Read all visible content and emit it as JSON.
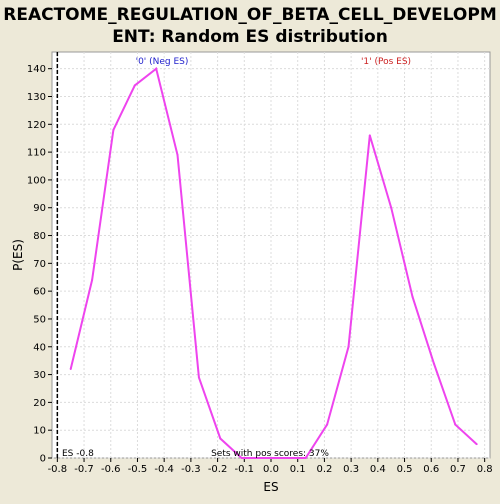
{
  "chart_data": {
    "type": "line",
    "title_line1": "REACTOME_REGULATION_OF_BETA_CELL_DEVELOPM",
    "title_line2": "ENT: Random ES distribution",
    "xlabel": "ES",
    "ylabel": "P(ES)",
    "xlim": [
      -0.82,
      0.82
    ],
    "ylim": [
      0,
      146
    ],
    "x_ticks": [
      -0.8,
      -0.7,
      -0.6,
      -0.5,
      -0.4,
      -0.3,
      -0.2,
      -0.1,
      0.0,
      0.1,
      0.2,
      0.3,
      0.4,
      0.5,
      0.6,
      0.7,
      0.8
    ],
    "x_tick_labels": [
      "-0.8",
      "-0.7",
      "-0.6",
      "-0.5",
      "-0.4",
      "-0.3",
      "-0.2",
      "-0.1",
      "0.0",
      "0.1",
      "0.2",
      "0.3",
      "0.4",
      "0.5",
      "0.6",
      "0.7",
      "0.8"
    ],
    "y_ticks": [
      0,
      10,
      20,
      30,
      40,
      50,
      60,
      70,
      80,
      90,
      100,
      110,
      120,
      130,
      140
    ],
    "y_tick_labels": [
      "0",
      "10",
      "20",
      "30",
      "40",
      "50",
      "60",
      "70",
      "80",
      "90",
      "100",
      "110",
      "120",
      "130",
      "140"
    ],
    "grid": true,
    "series": [
      {
        "color": "#ee44ee",
        "x": [
          -0.75,
          -0.67,
          -0.59,
          -0.51,
          -0.43,
          -0.35,
          -0.27,
          -0.19,
          -0.11,
          -0.03,
          0.05,
          0.13,
          0.21,
          0.29,
          0.37,
          0.45,
          0.53,
          0.61,
          0.69,
          0.77
        ],
        "y": [
          32,
          64,
          118,
          134,
          140,
          109,
          29,
          7,
          0,
          0,
          0,
          0,
          12,
          40,
          116,
          90,
          58,
          34,
          12,
          5
        ]
      }
    ],
    "annotations": {
      "neg_label": "'0' (Neg ES)",
      "neg_color": "#2222cc",
      "pos_label": "'1' (Pos ES)",
      "pos_color": "#cc2222",
      "es_marker_x": -0.8,
      "es_label": "ES -0.8",
      "pos_scores_label": "Sets with pos scores: 37%"
    }
  }
}
